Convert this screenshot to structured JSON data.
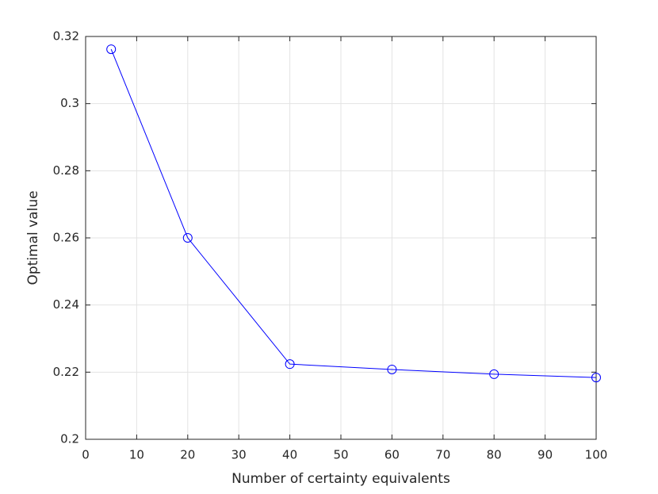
{
  "chart_data": {
    "type": "line",
    "xlabel": "Number of certainty equivalents",
    "ylabel": "Optimal value",
    "x": [
      5,
      20,
      40,
      60,
      80,
      100
    ],
    "series": [
      {
        "color": "#0000ff",
        "values": [
          0.3162,
          0.26,
          0.2224,
          0.2208,
          0.2194,
          0.2184
        ]
      }
    ],
    "xlim": [
      0,
      100
    ],
    "xticks": [
      0,
      10,
      20,
      30,
      40,
      50,
      60,
      70,
      80,
      90,
      100
    ],
    "ylim": [
      0.2,
      0.32
    ],
    "yticks": [
      0.2,
      0.22,
      0.24,
      0.26,
      0.28,
      0.3,
      0.32
    ],
    "grid": true,
    "marker": "circle"
  }
}
